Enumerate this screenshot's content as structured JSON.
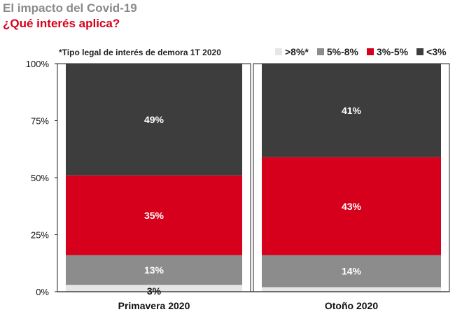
{
  "header": {
    "pre_title": "El impacto del Covid-19",
    "title": "¿Qué interés aplica?"
  },
  "note": "*Tipo legal de interés de demora 1T 2020",
  "legend": [
    {
      "label": ">8%*",
      "color": "#e6e6e6"
    },
    {
      "label": "5%-8%",
      "color": "#8c8c8c"
    },
    {
      "label": "3%-5%",
      "color": "#d6001c"
    },
    {
      "label": "<3%",
      "color": "#3d3d3d"
    }
  ],
  "chart_data": {
    "type": "bar",
    "stacked": true,
    "categories": [
      "Primavera 2020",
      "Otoño 2020"
    ],
    "series": [
      {
        "name": ">8%*",
        "color": "#e6e6e6",
        "values": [
          3,
          2
        ],
        "labels": [
          "3%",
          ""
        ]
      },
      {
        "name": "5%-8%",
        "color": "#8c8c8c",
        "values": [
          13,
          14
        ],
        "labels": [
          "13%",
          "14%"
        ]
      },
      {
        "name": "3%-5%",
        "color": "#d6001c",
        "values": [
          35,
          43
        ],
        "labels": [
          "35%",
          "43%"
        ]
      },
      {
        "name": "<3%",
        "color": "#3d3d3d",
        "values": [
          49,
          41
        ],
        "labels": [
          "49%",
          "41%"
        ]
      }
    ],
    "ylim": [
      0,
      100
    ],
    "yticks": [
      "0%",
      "25%",
      "50%",
      "75%",
      "100%"
    ],
    "grid": false,
    "legend_position": "top-right"
  }
}
